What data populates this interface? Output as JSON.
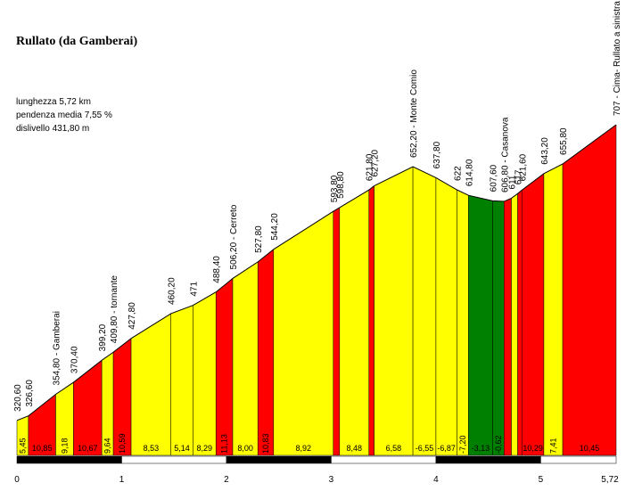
{
  "chart_data": {
    "type": "area",
    "title": "Rullato (da Gamberai)",
    "stats": [
      "lunghezza 5,72 km",
      "pendenza media 7,55 %",
      "dislivello 431,80 m"
    ],
    "xlim": [
      0,
      5.72
    ],
    "ylim": [
      275,
      707
    ],
    "km_ticks": [
      "0",
      "1",
      "2",
      "3",
      "4",
      "5",
      "5,72"
    ],
    "km_values": [
      0,
      1,
      2,
      3,
      4,
      5,
      5.72
    ],
    "colors": {
      "yellow": "#ffff00",
      "red": "#ff0000",
      "green": "#008000",
      "black": "#000000",
      "white": "#ffffff"
    },
    "points": [
      {
        "x": 0.0,
        "y": 320.6,
        "label": "320,60"
      },
      {
        "x": 0.11,
        "y": 326.6,
        "label": "326,60"
      },
      {
        "x": 0.37,
        "y": 354.8,
        "label": "354,80 - Gamberai"
      },
      {
        "x": 0.54,
        "y": 370.4,
        "label": "370,40"
      },
      {
        "x": 0.81,
        "y": 399.2,
        "label": "399,20"
      },
      {
        "x": 0.92,
        "y": 409.8,
        "label": "409,80 - tornante"
      },
      {
        "x": 1.09,
        "y": 427.8,
        "label": "427,80"
      },
      {
        "x": 1.47,
        "y": 460.2,
        "label": "460,20"
      },
      {
        "x": 1.68,
        "y": 471.0,
        "label": "471"
      },
      {
        "x": 1.9,
        "y": 488.4,
        "label": "488,40"
      },
      {
        "x": 2.06,
        "y": 506.2,
        "label": "506,20 - Cerreto"
      },
      {
        "x": 2.3,
        "y": 527.8,
        "label": "527,80"
      },
      {
        "x": 2.45,
        "y": 544.2,
        "label": "544,20"
      },
      {
        "x": 3.02,
        "y": 593.8,
        "label": "593,80"
      },
      {
        "x": 3.08,
        "y": 598.8,
        "label": "598,80"
      },
      {
        "x": 3.36,
        "y": 621.8,
        "label": "621,80"
      },
      {
        "x": 3.41,
        "y": 627.2,
        "label": "627,20"
      },
      {
        "x": 3.78,
        "y": 652.2,
        "label": "652,20 - Monte Comio"
      },
      {
        "x": 4.0,
        "y": 637.8,
        "label": "637,80"
      },
      {
        "x": 4.2,
        "y": 622.0,
        "label": "622"
      },
      {
        "x": 4.31,
        "y": 614.8,
        "label": "614,80"
      },
      {
        "x": 4.54,
        "y": 607.6,
        "label": "607,60"
      },
      {
        "x": 4.65,
        "y": 606.8,
        "label": "606,80 - Casanova"
      },
      {
        "x": 4.72,
        "y": 611.0,
        "label": "611"
      },
      {
        "x": 4.78,
        "y": 617.0,
        "label": "617"
      },
      {
        "x": 4.82,
        "y": 621.6,
        "label": "621,60"
      },
      {
        "x": 5.03,
        "y": 643.2,
        "label": "643,20"
      },
      {
        "x": 5.21,
        "y": 655.8,
        "label": "655,80"
      },
      {
        "x": 5.72,
        "y": 707.0,
        "label": "707 - Cima- Rullato a sinistra"
      }
    ],
    "segments": [
      {
        "grade": "5,45",
        "color": "yellow"
      },
      {
        "grade": "10,85",
        "color": "red"
      },
      {
        "grade": "9,18",
        "color": "yellow"
      },
      {
        "grade": "10,67",
        "color": "red"
      },
      {
        "grade": "9,64",
        "color": "yellow"
      },
      {
        "grade": "10,59",
        "color": "red"
      },
      {
        "grade": "8,53",
        "color": "yellow"
      },
      {
        "grade": "5,14",
        "color": "yellow"
      },
      {
        "grade": "8,29",
        "color": "yellow"
      },
      {
        "grade": "11,13",
        "color": "red"
      },
      {
        "grade": "8,00",
        "color": "yellow"
      },
      {
        "grade": "10,83",
        "color": "red"
      },
      {
        "grade": "8,92",
        "color": "yellow"
      },
      {
        "grade": "",
        "color": "red"
      },
      {
        "grade": "8,48",
        "color": "yellow"
      },
      {
        "grade": "",
        "color": "red"
      },
      {
        "grade": "6,58",
        "color": "yellow"
      },
      {
        "grade": "-6,55",
        "color": "yellow"
      },
      {
        "grade": "-6,87",
        "color": "yellow"
      },
      {
        "grade": "-7,20",
        "color": "yellow"
      },
      {
        "grade": "-3,13",
        "color": "green"
      },
      {
        "grade": "-0,62",
        "color": "green"
      },
      {
        "grade": "",
        "color": "red"
      },
      {
        "grade": "",
        "color": "yellow"
      },
      {
        "grade": "",
        "color": "red"
      },
      {
        "grade": "10,29",
        "color": "red"
      },
      {
        "grade": "7,41",
        "color": "yellow"
      },
      {
        "grade": "10,45",
        "color": "red"
      }
    ]
  }
}
